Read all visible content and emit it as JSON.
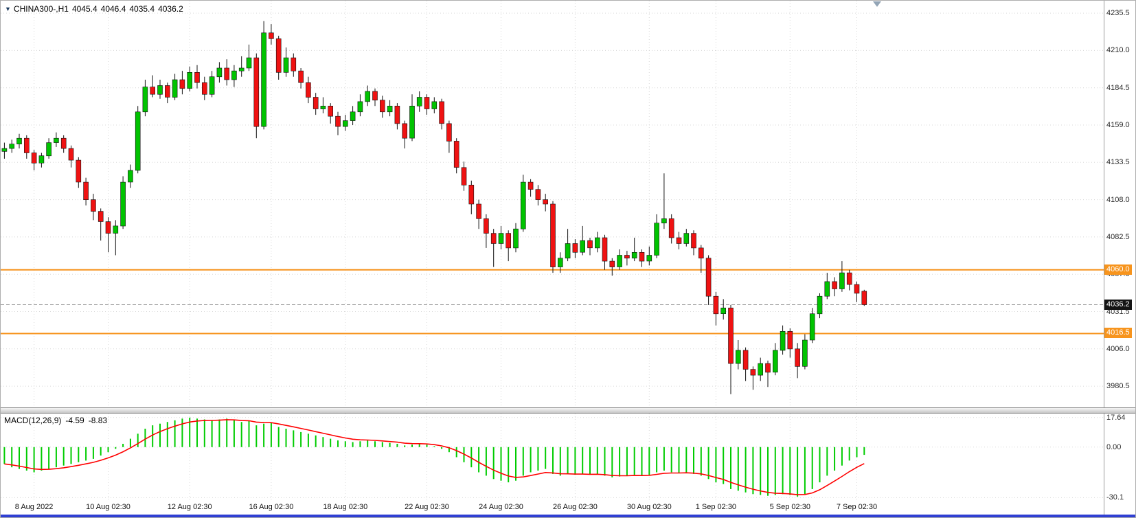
{
  "window": {
    "header": {
      "menu_icon": "▼",
      "symbol_period": "CHINA300-,H1",
      "open": "4045.4",
      "high": "4046.4",
      "low": "4035.4",
      "close": "4036.2"
    }
  },
  "macd_header": {
    "label": "MACD(12,26,9)",
    "macd_value": "-4.59",
    "signal_value": "-8.83"
  },
  "colors": {
    "up": "#00C300",
    "down": "#EF1212",
    "wick": "#111111",
    "grid": "#D8D8D8",
    "level": "#F7941D",
    "bid_line": "#9A9A9A",
    "bid_badge": "#141414",
    "macd_bar": "#00CC00",
    "signal": "#FF0000",
    "bottom_bar": "#2F3FD3"
  },
  "chart_data": [
    {
      "type": "candlestick",
      "title": "CHINA300-,H1",
      "price_axis": {
        "min": 3966,
        "max": 4244,
        "ticks": [
          4235.5,
          4210.0,
          4184.5,
          4159.0,
          4133.5,
          4108.0,
          4082.5,
          4057.0,
          4031.5,
          4006.0,
          3980.5
        ]
      },
      "time_axis": {
        "slots": 149,
        "ticks": [
          {
            "label": "8 Aug 2022",
            "bar": 4
          },
          {
            "label": "10 Aug 02:30",
            "bar": 14
          },
          {
            "label": "12 Aug 02:30",
            "bar": 25
          },
          {
            "label": "16 Aug 02:30",
            "bar": 36
          },
          {
            "label": "18 Aug 02:30",
            "bar": 46
          },
          {
            "label": "22 Aug 02:30",
            "bar": 57
          },
          {
            "label": "24 Aug 02:30",
            "bar": 67
          },
          {
            "label": "26 Aug 02:30",
            "bar": 77
          },
          {
            "label": "30 Aug 02:30",
            "bar": 87
          },
          {
            "label": "1 Sep 02:30",
            "bar": 96
          },
          {
            "label": "5 Sep 02:30",
            "bar": 106
          },
          {
            "label": "7 Sep 02:30",
            "bar": 115
          }
        ]
      },
      "levels": [
        {
          "value": 4060.0,
          "label": "4060.0"
        },
        {
          "value": 4016.5,
          "label": "4016.5"
        }
      ],
      "bid": {
        "value": 4036.2,
        "label": "4036.2"
      },
      "candles": [
        [
          4141,
          4147,
          4136,
          4143
        ],
        [
          4143,
          4149,
          4140,
          4146
        ],
        [
          4146,
          4153,
          4143,
          4150
        ],
        [
          4150,
          4152,
          4136,
          4140
        ],
        [
          4140,
          4142,
          4128,
          4133
        ],
        [
          4133,
          4140,
          4130,
          4138
        ],
        [
          4138,
          4150,
          4136,
          4147
        ],
        [
          4147,
          4154,
          4144,
          4150
        ],
        [
          4150,
          4152,
          4140,
          4143
        ],
        [
          4143,
          4145,
          4130,
          4135
        ],
        [
          4135,
          4137,
          4116,
          4120
        ],
        [
          4120,
          4123,
          4104,
          4108
        ],
        [
          4108,
          4112,
          4094,
          4100
        ],
        [
          4100,
          4102,
          4080,
          4093
        ],
        [
          4093,
          4096,
          4072,
          4085
        ],
        [
          4085,
          4094,
          4070,
          4090
        ],
        [
          4090,
          4124,
          4088,
          4120
        ],
        [
          4120,
          4132,
          4116,
          4128
        ],
        [
          4128,
          4172,
          4126,
          4168
        ],
        [
          4168,
          4190,
          4165,
          4185
        ],
        [
          4185,
          4193,
          4178,
          4180
        ],
        [
          4180,
          4190,
          4177,
          4186
        ],
        [
          4186,
          4188,
          4174,
          4178
        ],
        [
          4178,
          4194,
          4176,
          4190
        ],
        [
          4190,
          4196,
          4180,
          4184
        ],
        [
          4184,
          4199,
          4182,
          4195
        ],
        [
          4195,
          4200,
          4184,
          4188
        ],
        [
          4188,
          4192,
          4176,
          4180
        ],
        [
          4180,
          4196,
          4178,
          4192
        ],
        [
          4192,
          4202,
          4188,
          4198
        ],
        [
          4198,
          4204,
          4186,
          4190
        ],
        [
          4190,
          4200,
          4185,
          4196
        ],
        [
          4196,
          4206,
          4192,
          4198
        ],
        [
          4198,
          4214,
          4196,
          4205
        ],
        [
          4205,
          4208,
          4150,
          4158
        ],
        [
          4158,
          4230,
          4156,
          4222
        ],
        [
          4222,
          4228,
          4214,
          4218
        ],
        [
          4218,
          4220,
          4190,
          4195
        ],
        [
          4195,
          4212,
          4192,
          4205
        ],
        [
          4205,
          4208,
          4192,
          4196
        ],
        [
          4196,
          4198,
          4184,
          4188
        ],
        [
          4188,
          4192,
          4174,
          4178
        ],
        [
          4178,
          4181,
          4166,
          4170
        ],
        [
          4170,
          4178,
          4167,
          4172
        ],
        [
          4172,
          4174,
          4160,
          4165
        ],
        [
          4165,
          4168,
          4152,
          4158
        ],
        [
          4158,
          4166,
          4155,
          4162
        ],
        [
          4162,
          4172,
          4159,
          4168
        ],
        [
          4168,
          4180,
          4165,
          4175
        ],
        [
          4175,
          4186,
          4172,
          4182
        ],
        [
          4182,
          4184,
          4172,
          4176
        ],
        [
          4176,
          4179,
          4164,
          4168
        ],
        [
          4168,
          4176,
          4165,
          4172
        ],
        [
          4172,
          4174,
          4156,
          4160
        ],
        [
          4160,
          4162,
          4143,
          4150
        ],
        [
          4150,
          4180,
          4148,
          4172
        ],
        [
          4172,
          4182,
          4168,
          4178
        ],
        [
          4178,
          4180,
          4166,
          4170
        ],
        [
          4170,
          4178,
          4167,
          4175
        ],
        [
          4175,
          4177,
          4156,
          4160
        ],
        [
          4160,
          4162,
          4140,
          4148
        ],
        [
          4148,
          4150,
          4126,
          4130
        ],
        [
          4130,
          4134,
          4114,
          4118
        ],
        [
          4118,
          4121,
          4098,
          4105
        ],
        [
          4105,
          4108,
          4088,
          4095
        ],
        [
          4095,
          4098,
          4075,
          4085
        ],
        [
          4085,
          4088,
          4062,
          4078
        ],
        [
          4078,
          4090,
          4074,
          4085
        ],
        [
          4085,
          4087,
          4066,
          4075
        ],
        [
          4075,
          4092,
          4072,
          4088
        ],
        [
          4088,
          4125,
          4086,
          4120
        ],
        [
          4120,
          4122,
          4110,
          4115
        ],
        [
          4115,
          4118,
          4104,
          4108
        ],
        [
          4108,
          4112,
          4100,
          4105
        ],
        [
          4105,
          4107,
          4058,
          4062
        ],
        [
          4062,
          4072,
          4058,
          4068
        ],
        [
          4068,
          4088,
          4066,
          4078
        ],
        [
          4078,
          4081,
          4068,
          4072
        ],
        [
          4072,
          4090,
          4070,
          4080
        ],
        [
          4080,
          4082,
          4070,
          4075
        ],
        [
          4075,
          4086,
          4072,
          4082
        ],
        [
          4082,
          4084,
          4060,
          4066
        ],
        [
          4066,
          4068,
          4056,
          4062
        ],
        [
          4062,
          4074,
          4060,
          4070
        ],
        [
          4070,
          4073,
          4063,
          4068
        ],
        [
          4068,
          4082,
          4066,
          4072
        ],
        [
          4072,
          4074,
          4062,
          4066
        ],
        [
          4066,
          4076,
          4063,
          4070
        ],
        [
          4070,
          4098,
          4068,
          4092
        ],
        [
          4092,
          4126,
          4088,
          4095
        ],
        [
          4095,
          4098,
          4078,
          4082
        ],
        [
          4082,
          4086,
          4074,
          4078
        ],
        [
          4078,
          4088,
          4076,
          4085
        ],
        [
          4085,
          4087,
          4070,
          4075
        ],
        [
          4075,
          4077,
          4058,
          4068
        ],
        [
          4068,
          4070,
          4036,
          4042
        ],
        [
          4042,
          4045,
          4022,
          4030
        ],
        [
          4030,
          4040,
          4026,
          4034
        ],
        [
          4034,
          4036,
          3975,
          3996
        ],
        [
          3996,
          4012,
          3992,
          4005
        ],
        [
          4005,
          4007,
          3984,
          3992
        ],
        [
          3992,
          3994,
          3978,
          3988
        ],
        [
          3988,
          4000,
          3984,
          3996
        ],
        [
          3996,
          3998,
          3980,
          3990
        ],
        [
          3990,
          4010,
          3988,
          4005
        ],
        [
          4005,
          4022,
          4002,
          4018
        ],
        [
          4018,
          4020,
          4000,
          4006
        ],
        [
          4006,
          4010,
          3986,
          3994
        ],
        [
          3994,
          4016,
          3992,
          4012
        ],
        [
          4012,
          4034,
          4010,
          4030
        ],
        [
          4030,
          4044,
          4027,
          4042
        ],
        [
          4042,
          4058,
          4040,
          4052
        ],
        [
          4052,
          4055,
          4042,
          4047
        ],
        [
          4047,
          4066,
          4045,
          4058
        ],
        [
          4058,
          4060,
          4046,
          4050
        ],
        [
          4050,
          4052,
          4038,
          4044
        ],
        [
          4045.4,
          4046.4,
          4035.4,
          4036.2
        ]
      ]
    },
    {
      "type": "bar",
      "title": "MACD(12,26,9)",
      "axis": {
        "min": -32,
        "max": 20,
        "ticks": [
          {
            "value": 17.64,
            "label": "17.64"
          },
          {
            "value": 0,
            "label": "0.00"
          },
          {
            "value": -30.1,
            "label": "-30.1"
          }
        ]
      },
      "histogram": [
        -10,
        -12,
        -13,
        -14,
        -15,
        -14,
        -13,
        -12,
        -11,
        -10,
        -9,
        -8,
        -7,
        -5,
        -3,
        -1,
        2,
        5,
        8,
        11,
        13,
        14,
        15,
        16,
        17,
        17.6,
        17,
        16.5,
        16,
        16.5,
        17,
        16,
        15,
        15.5,
        13,
        14,
        14.5,
        12,
        11,
        10,
        9,
        8,
        7,
        6,
        5,
        4,
        3.5,
        3,
        3.5,
        4,
        3.5,
        3,
        2.5,
        2,
        1,
        1.5,
        2,
        1.5,
        0.5,
        -1,
        -3,
        -6,
        -9,
        -12,
        -15,
        -17,
        -19,
        -20,
        -21,
        -20,
        -17,
        -15,
        -14,
        -13,
        -16,
        -17,
        -16,
        -16.5,
        -16,
        -16.5,
        -16,
        -17,
        -18,
        -17.5,
        -17,
        -16.5,
        -17,
        -16.5,
        -15,
        -14,
        -15,
        -15.5,
        -15,
        -16,
        -17,
        -19,
        -21,
        -22,
        -25,
        -26,
        -27,
        -28,
        -28.5,
        -29,
        -28.5,
        -28,
        -28.5,
        -29.5,
        -28,
        -25,
        -21,
        -17,
        -14,
        -11,
        -8,
        -6,
        -4.59
      ]
    }
  ]
}
